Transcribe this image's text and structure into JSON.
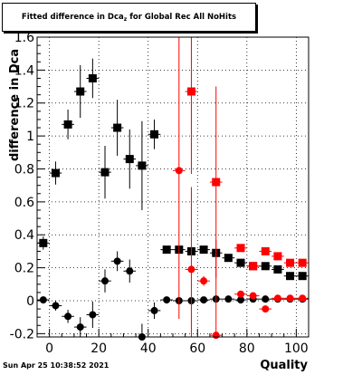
{
  "title": {
    "main": "Fitted difference in Dca",
    "sub": "z",
    "tail": " for Global Rec All NoHits"
  },
  "timestamp": "Sun Apr 25 10:38:52 2021",
  "chart_data": {
    "type": "scatter",
    "title": "Fitted difference in Dca_z for Global Rec All NoHits",
    "xlabel": "Quality",
    "ylabel": "difference in Dca",
    "xlim": [
      -5,
      105
    ],
    "ylim": [
      -0.22,
      1.6
    ],
    "x_ticks": [
      0,
      20,
      40,
      60,
      80,
      100
    ],
    "x_tick_labels": [
      "0",
      "20",
      "40",
      "60",
      "80",
      "100"
    ],
    "y_ticks": [
      -0.2,
      0,
      0.2,
      0.4,
      0.6,
      0.8,
      1,
      1.2,
      1.4,
      1.6
    ],
    "y_tick_labels": [
      "-0.2",
      "0",
      "0.2",
      "0.4",
      "0.6",
      "0.8",
      "1",
      "1.2",
      "1.4",
      "1.6"
    ],
    "grid": true,
    "series": [
      {
        "marker": "square",
        "color": "#000000",
        "points": [
          {
            "x": -2.5,
            "y": 0.35,
            "err": 0.04
          },
          {
            "x": 2.5,
            "y": 0.775,
            "err": 0.07
          },
          {
            "x": 7.5,
            "y": 1.07,
            "err": 0.09
          },
          {
            "x": 12.5,
            "y": 1.27,
            "err": 0.16
          },
          {
            "x": 17.5,
            "y": 1.35,
            "err": 0.12
          },
          {
            "x": 22.5,
            "y": 0.78,
            "err": 0.16
          },
          {
            "x": 27.5,
            "y": 1.05,
            "err": 0.17
          },
          {
            "x": 32.5,
            "y": 0.86,
            "err": 0.18
          },
          {
            "x": 37.5,
            "y": 0.82,
            "err": 0.27
          },
          {
            "x": 42.5,
            "y": 1.01,
            "err": 0.09
          },
          {
            "x": 47.5,
            "y": 0.31,
            "err": 0.02
          },
          {
            "x": 52.5,
            "y": 0.31,
            "err": 0.02
          },
          {
            "x": 57.5,
            "y": 0.3,
            "err": 0.02
          },
          {
            "x": 62.5,
            "y": 0.31,
            "err": 0.02
          },
          {
            "x": 67.5,
            "y": 0.29,
            "err": 0.01
          },
          {
            "x": 72.5,
            "y": 0.26,
            "err": 0.01
          },
          {
            "x": 77.5,
            "y": 0.23,
            "err": 0.01
          },
          {
            "x": 82.5,
            "y": 0.21,
            "err": 0.01
          },
          {
            "x": 87.5,
            "y": 0.21,
            "err": 0.01
          },
          {
            "x": 92.5,
            "y": 0.19,
            "err": 0.01
          },
          {
            "x": 97.5,
            "y": 0.15,
            "err": 0.01
          },
          {
            "x": 102.5,
            "y": 0.15,
            "err": 0.01
          }
        ]
      },
      {
        "marker": "circle",
        "color": "#000000",
        "points": [
          {
            "x": -2.5,
            "y": 0.005,
            "err": 0.02
          },
          {
            "x": 2.5,
            "y": -0.03,
            "err": 0.03
          },
          {
            "x": 7.5,
            "y": -0.095,
            "err": 0.04
          },
          {
            "x": 12.5,
            "y": -0.16,
            "err": 0.06
          },
          {
            "x": 17.5,
            "y": -0.085,
            "err": 0.08
          },
          {
            "x": 22.5,
            "y": 0.12,
            "err": 0.07
          },
          {
            "x": 27.5,
            "y": 0.24,
            "err": 0.06
          },
          {
            "x": 32.5,
            "y": 0.18,
            "err": 0.07
          },
          {
            "x": 37.5,
            "y": -0.22,
            "err": 0.08
          },
          {
            "x": 42.5,
            "y": -0.06,
            "err": 0.05
          },
          {
            "x": 47.5,
            "y": 0.005,
            "err": 0.01
          },
          {
            "x": 52.5,
            "y": 0.0,
            "err": 0.01
          },
          {
            "x": 57.5,
            "y": 0.0,
            "err": 0.01
          },
          {
            "x": 62.5,
            "y": 0.005,
            "err": 0.01
          },
          {
            "x": 67.5,
            "y": 0.01,
            "err": 0.01
          },
          {
            "x": 72.5,
            "y": 0.01,
            "err": 0.01
          },
          {
            "x": 77.5,
            "y": 0.005,
            "err": 0.01
          },
          {
            "x": 82.5,
            "y": 0.01,
            "err": 0.01
          },
          {
            "x": 87.5,
            "y": 0.01,
            "err": 0.01
          },
          {
            "x": 92.5,
            "y": 0.01,
            "err": 0.01
          },
          {
            "x": 97.5,
            "y": 0.01,
            "err": 0.01
          },
          {
            "x": 102.5,
            "y": 0.01,
            "err": 0.01
          }
        ]
      },
      {
        "marker": "square",
        "color": "#ff0000",
        "points": [
          {
            "x": 57.5,
            "y": 1.27,
            "err": 0.5
          },
          {
            "x": 67.5,
            "y": 0.72,
            "err": 0.58
          },
          {
            "x": 77.5,
            "y": 0.32,
            "err": 0.02
          },
          {
            "x": 82.5,
            "y": 0.21,
            "err": 0.01
          },
          {
            "x": 87.5,
            "y": 0.3,
            "err": 0.01
          },
          {
            "x": 92.5,
            "y": 0.27,
            "err": 0.01
          },
          {
            "x": 97.5,
            "y": 0.23,
            "err": 0.01
          },
          {
            "x": 102.5,
            "y": 0.23,
            "err": 0.01
          }
        ]
      },
      {
        "marker": "circle",
        "color": "#ff0000",
        "points": [
          {
            "x": 52.5,
            "y": 0.79,
            "err": 0.9
          },
          {
            "x": 57.5,
            "y": 0.19,
            "err": 0.5
          },
          {
            "x": 62.5,
            "y": 0.12,
            "err": 0.03
          },
          {
            "x": 67.5,
            "y": -0.21,
            "err": 0.58
          },
          {
            "x": 77.5,
            "y": 0.04,
            "err": 0.01
          },
          {
            "x": 82.5,
            "y": 0.03,
            "err": 0.01
          },
          {
            "x": 87.5,
            "y": -0.05,
            "err": 0.01
          },
          {
            "x": 92.5,
            "y": 0.015,
            "err": 0.01
          },
          {
            "x": 97.5,
            "y": 0.015,
            "err": 0.01
          },
          {
            "x": 102.5,
            "y": 0.015,
            "err": 0.01
          }
        ]
      }
    ]
  }
}
